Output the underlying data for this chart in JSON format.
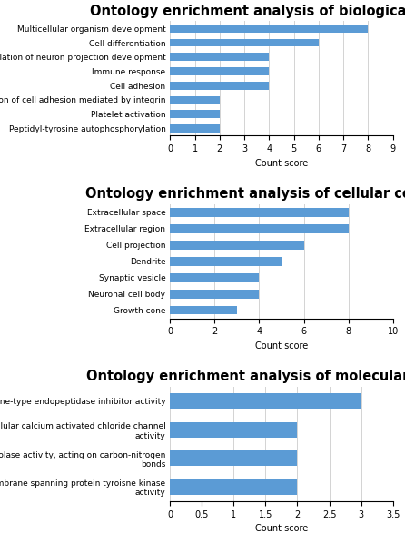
{
  "bp": {
    "title": "Ontology enrichment analysis of biological process",
    "categories": [
      "Multicellular organism development",
      "Cell differentiation",
      "Positive regulation of neuron projection development",
      "Immune response",
      "Cell adhesion",
      "Regulation of cell adhesion mediated by integrin",
      "Platelet activation",
      "Peptidyl-tyrosine autophosphorylation"
    ],
    "values": [
      8,
      6,
      4,
      4,
      4,
      2,
      2,
      2
    ],
    "xlim": [
      0,
      9
    ],
    "xticks": [
      0,
      1,
      2,
      3,
      4,
      5,
      6,
      7,
      8,
      9
    ],
    "xlabel": "Count score"
  },
  "cc": {
    "title": "Ontology enrichment analysis of cellular component",
    "categories": [
      "Extracellular space",
      "Extracellular region",
      "Cell projection",
      "Dendrite",
      "Synaptic vesicle",
      "Neuronal cell body",
      "Growth cone"
    ],
    "values": [
      8,
      8,
      6,
      5,
      4,
      4,
      3
    ],
    "xlim": [
      0,
      10
    ],
    "xticks": [
      0,
      2,
      4,
      6,
      8,
      10
    ],
    "xlabel": "Count score"
  },
  "mf": {
    "title": "Ontology enrichment analysis of molecular function",
    "categories": [
      "Serine-type endopeptidase inhibitor activity",
      "Intracellular calcium activated chloride channel\nactivity",
      "Hydrolase activity, acting on carbon-nitrogen\nbonds",
      "Non-membrane spanning protein tyroisne kinase\nactivity"
    ],
    "values": [
      3,
      2,
      2,
      2
    ],
    "xlim": [
      0,
      3.5
    ],
    "xticks": [
      0,
      0.5,
      1,
      1.5,
      2,
      2.5,
      3,
      3.5
    ],
    "xlabel": "Count score"
  },
  "bar_color": "#5b9bd5",
  "grid_color": "#d3d3d3",
  "title_fontsize": 10.5,
  "label_fontsize": 6.5,
  "tick_fontsize": 7,
  "xlabel_fontsize": 7
}
